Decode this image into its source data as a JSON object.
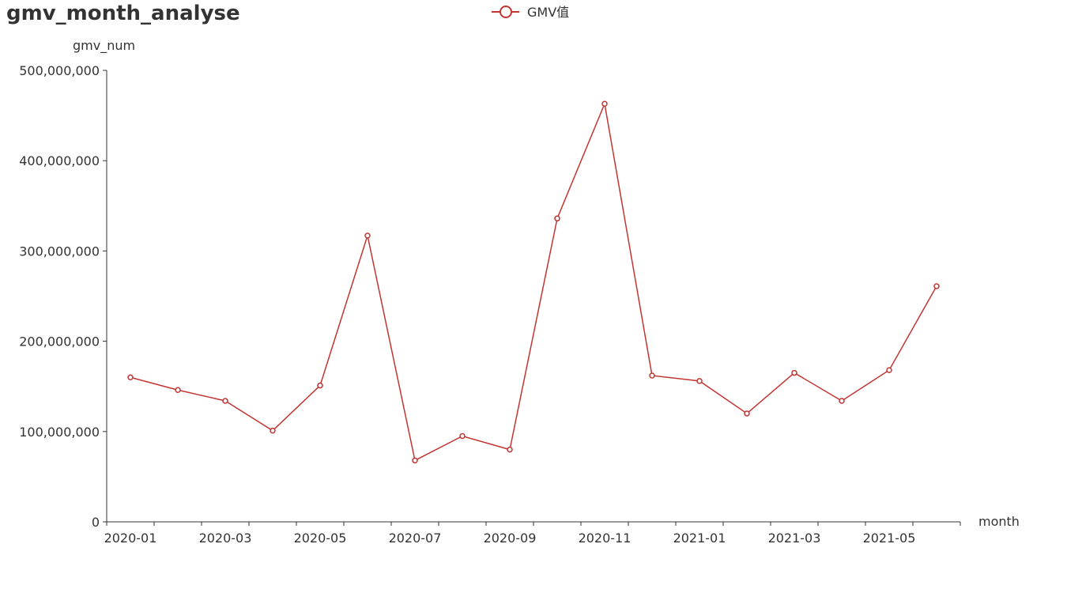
{
  "chart_data": {
    "type": "line",
    "title": "gmv_month_analyse",
    "xlabel": "month",
    "ylabel": "gmv_num",
    "x": [
      "2020-01",
      "2020-02",
      "2020-03",
      "2020-04",
      "2020-05",
      "2020-06",
      "2020-07",
      "2020-08",
      "2020-09",
      "2020-10",
      "2020-11",
      "2020-12",
      "2021-01",
      "2021-02",
      "2021-03",
      "2021-04",
      "2021-05",
      "2021-06"
    ],
    "x_tick_labels": [
      "2020-01",
      "2020-03",
      "2020-05",
      "2020-07",
      "2020-09",
      "2020-11",
      "2021-01",
      "2021-03",
      "2021-05"
    ],
    "y_tick_labels": [
      "0",
      "100,000,000",
      "200,000,000",
      "300,000,000",
      "400,000,000",
      "500,000,000"
    ],
    "ylim": [
      0,
      500000000
    ],
    "grid": false,
    "legend_position": "top-center",
    "series": [
      {
        "name": "GMV值",
        "color": "#c23531",
        "values": [
          160000000,
          146000000,
          134000000,
          101000000,
          151000000,
          317000000,
          68000000,
          95000000,
          80000000,
          336000000,
          463000000,
          162000000,
          156000000,
          120000000,
          165000000,
          134000000,
          168000000,
          261000000
        ]
      }
    ]
  }
}
